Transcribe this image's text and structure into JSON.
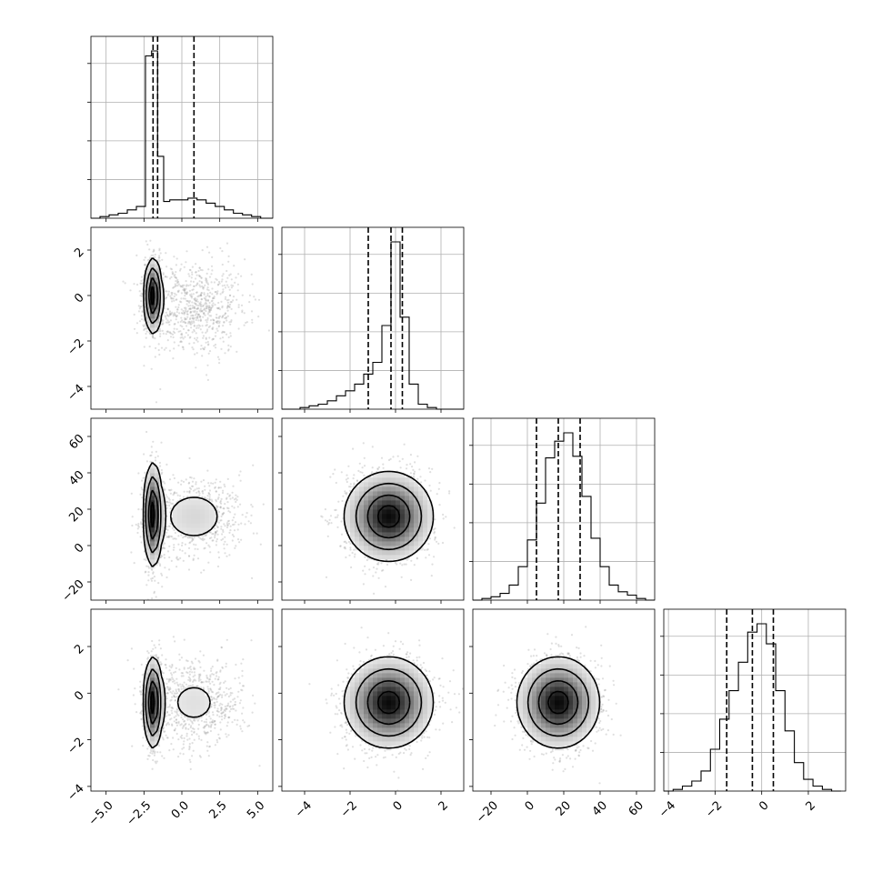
{
  "chart_data": {
    "type": "corner",
    "title": "",
    "n_params": 4,
    "axes": [
      {
        "range": [
          -6.0,
          6.0
        ],
        "ticks": [
          -5.0,
          -2.5,
          0.0,
          2.5,
          5.0
        ],
        "tick_labels": [
          "−5.0",
          "−2.5",
          "0.0",
          "2.5",
          "5.0"
        ]
      },
      {
        "range": [
          -5.0,
          3.0
        ],
        "ticks": [
          -4,
          -2,
          0,
          2
        ],
        "tick_labels": [
          "−4",
          "−2",
          "0",
          "2"
        ]
      },
      {
        "range": [
          -30,
          70
        ],
        "ticks": [
          -20,
          0,
          20,
          40,
          60
        ],
        "tick_labels": [
          "−20",
          "0",
          "20",
          "40",
          "60"
        ]
      },
      {
        "range": [
          -4.2,
          3.6
        ],
        "ticks": [
          -4,
          -2,
          0,
          2
        ],
        "tick_labels": [
          "−4",
          "−2",
          "0",
          "2"
        ]
      }
    ],
    "quantiles": [
      [
        -1.9,
        -1.6,
        0.8
      ],
      [
        -1.2,
        -0.2,
        0.3
      ],
      [
        5,
        17,
        29
      ],
      [
        -1.5,
        -0.4,
        0.5
      ]
    ],
    "histograms": [
      {
        "bin_edges": [
          -6.0,
          -5.4,
          -4.8,
          -4.2,
          -3.6,
          -3.0,
          -2.4,
          -2.0,
          -1.6,
          -1.2,
          -0.8,
          -0.2,
          0.4,
          1.0,
          1.6,
          2.2,
          2.8,
          3.4,
          4.0,
          4.6,
          5.2,
          6.0
        ],
        "counts": [
          0.0,
          0.01,
          0.02,
          0.03,
          0.05,
          0.07,
          0.97,
          1.0,
          0.37,
          0.1,
          0.11,
          0.11,
          0.12,
          0.11,
          0.09,
          0.07,
          0.05,
          0.03,
          0.02,
          0.01,
          0.0
        ]
      },
      {
        "bin_edges": [
          -5.0,
          -4.6,
          -4.2,
          -3.8,
          -3.4,
          -3.0,
          -2.6,
          -2.2,
          -1.8,
          -1.4,
          -1.0,
          -0.6,
          -0.2,
          0.2,
          0.6,
          1.0,
          1.4,
          1.8,
          2.2,
          2.6,
          3.0
        ],
        "counts": [
          0.0,
          0.0,
          0.01,
          0.02,
          0.03,
          0.05,
          0.08,
          0.11,
          0.15,
          0.21,
          0.28,
          0.5,
          1.0,
          0.55,
          0.15,
          0.03,
          0.01,
          0.0,
          0.0,
          0.0
        ]
      },
      {
        "bin_edges": [
          -30,
          -25,
          -20,
          -15,
          -10,
          -5,
          0,
          5,
          10,
          15,
          20,
          25,
          30,
          35,
          40,
          45,
          50,
          55,
          60,
          65,
          70
        ],
        "counts": [
          0.0,
          0.01,
          0.02,
          0.04,
          0.09,
          0.2,
          0.36,
          0.58,
          0.85,
          0.95,
          1.0,
          0.86,
          0.62,
          0.37,
          0.2,
          0.09,
          0.05,
          0.03,
          0.01,
          0.0
        ]
      },
      {
        "bin_edges": [
          -4.2,
          -3.8,
          -3.4,
          -3.0,
          -2.6,
          -2.2,
          -1.8,
          -1.4,
          -1.0,
          -0.6,
          -0.2,
          0.2,
          0.6,
          1.0,
          1.4,
          1.8,
          2.2,
          2.6,
          3.0,
          3.4
        ],
        "counts": [
          0.0,
          0.01,
          0.03,
          0.06,
          0.12,
          0.25,
          0.43,
          0.6,
          0.77,
          0.95,
          1.0,
          0.88,
          0.6,
          0.36,
          0.17,
          0.07,
          0.03,
          0.01,
          0.0
        ]
      }
    ],
    "scatter_density": [
      {
        "row": 1,
        "col": 0,
        "components": [
          {
            "w": 0.55,
            "mean": [
              -1.9,
              0.0
            ],
            "sd": [
              0.28,
              0.8
            ]
          },
          {
            "w": 0.45,
            "mean": [
              0.8,
              -0.5
            ],
            "sd": [
              1.6,
              1.0
            ]
          }
        ]
      },
      {
        "row": 2,
        "col": 0,
        "components": [
          {
            "w": 0.55,
            "mean": [
              -1.9,
              17
            ],
            "sd": [
              0.3,
              14
            ]
          },
          {
            "w": 0.45,
            "mean": [
              0.8,
              16
            ],
            "sd": [
              1.6,
              11
            ]
          }
        ]
      },
      {
        "row": 2,
        "col": 1,
        "components": [
          {
            "w": 1.0,
            "mean": [
              -0.3,
              16
            ],
            "sd": [
              0.95,
              12
            ]
          }
        ]
      },
      {
        "row": 3,
        "col": 0,
        "components": [
          {
            "w": 0.55,
            "mean": [
              -1.9,
              -0.4
            ],
            "sd": [
              0.3,
              0.95
            ]
          },
          {
            "w": 0.45,
            "mean": [
              0.8,
              -0.4
            ],
            "sd": [
              1.6,
              0.95
            ]
          }
        ]
      },
      {
        "row": 3,
        "col": 1,
        "components": [
          {
            "w": 1.0,
            "mean": [
              -0.3,
              -0.4
            ],
            "sd": [
              0.95,
              0.95
            ]
          }
        ]
      },
      {
        "row": 3,
        "col": 2,
        "components": [
          {
            "w": 1.0,
            "mean": [
              17,
              -0.4
            ],
            "sd": [
              11,
              0.95
            ]
          }
        ]
      }
    ],
    "grid": true
  }
}
